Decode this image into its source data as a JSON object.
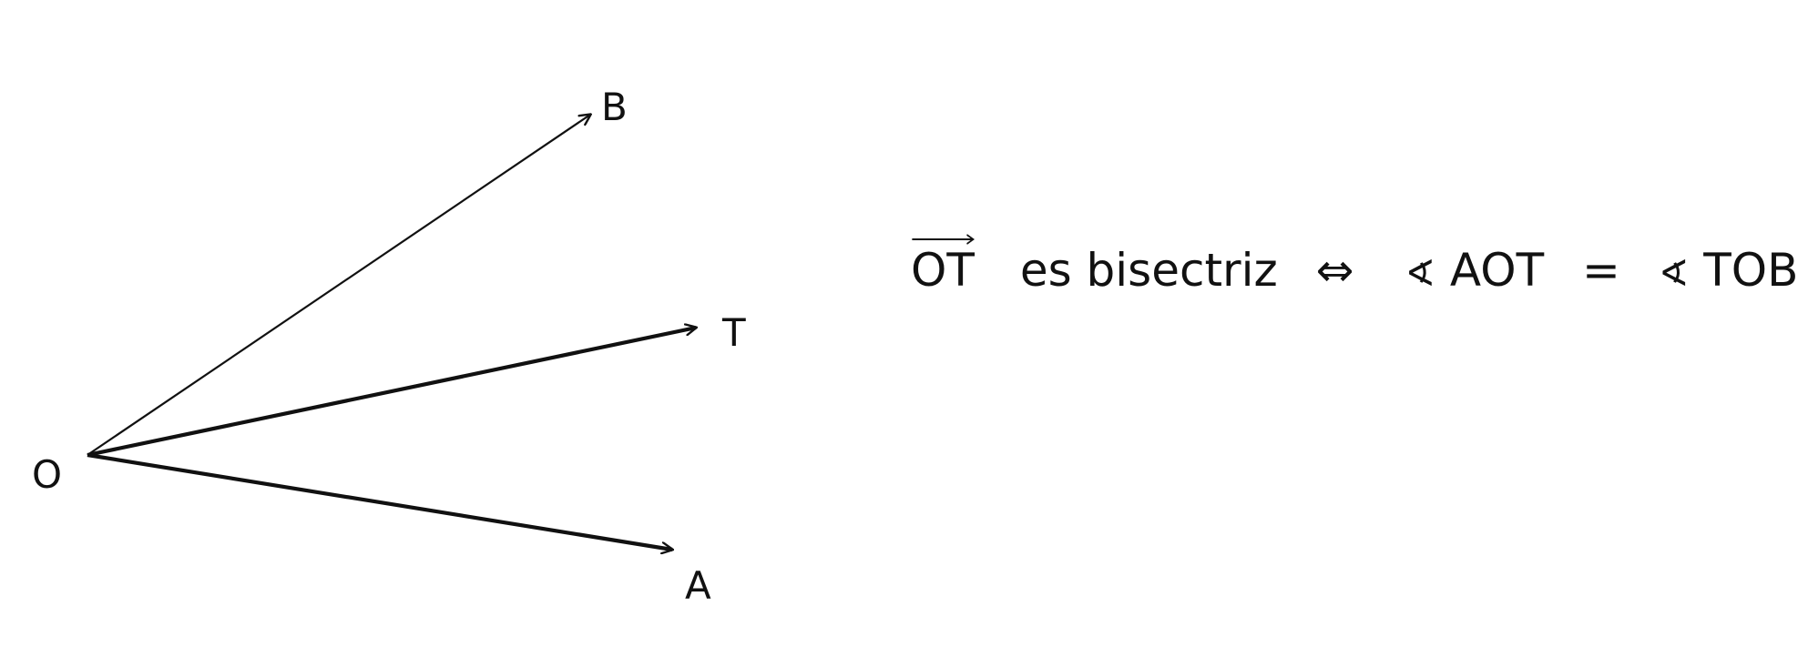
{
  "labels": {
    "O": "O",
    "A": "A",
    "T": "T",
    "B": "B"
  },
  "formula": {
    "ray": "OT",
    "text": "es bisectriz",
    "iff": "⇔",
    "angle_symbol": "∢",
    "left_angle": "AOT",
    "equals": "=",
    "right_angle": "TOB"
  },
  "colors": {
    "ink": "#111111",
    "background": "#ffffff"
  }
}
